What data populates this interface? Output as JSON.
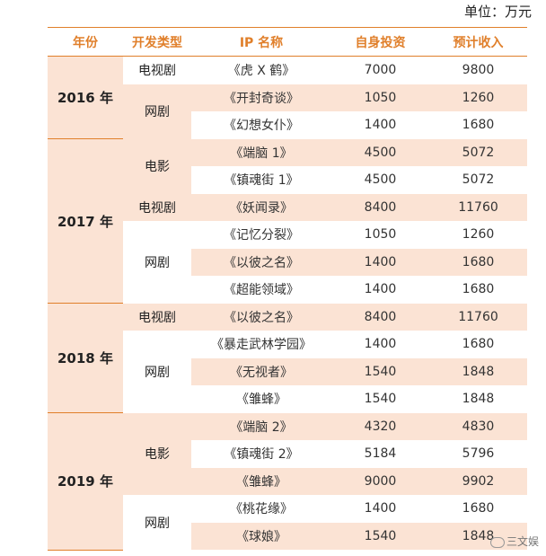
{
  "unit_label": "单位：万元",
  "headers": [
    "年份",
    "开发类型",
    "IP 名称",
    "自身投资",
    "预计收入"
  ],
  "years": [
    {
      "year": "2016 年",
      "groups": [
        {
          "type": "电视剧",
          "rows": [
            {
              "ip": "《虎 X 鹤》",
              "invest": "7000",
              "income": "9800"
            }
          ]
        },
        {
          "type": "网剧",
          "rows": [
            {
              "ip": "《开封奇谈》",
              "invest": "1050",
              "income": "1260"
            },
            {
              "ip": "《幻想女仆》",
              "invest": "1400",
              "income": "1680"
            }
          ]
        }
      ]
    },
    {
      "year": "2017 年",
      "groups": [
        {
          "type": "电影",
          "rows": [
            {
              "ip": "《端脑 1》",
              "invest": "4500",
              "income": "5072"
            },
            {
              "ip": "《镇魂街 1》",
              "invest": "4500",
              "income": "5072"
            }
          ]
        },
        {
          "type": "电视剧",
          "rows": [
            {
              "ip": "《妖闻录》",
              "invest": "8400",
              "income": "11760"
            }
          ]
        },
        {
          "type": "网剧",
          "rows": [
            {
              "ip": "《记忆分裂》",
              "invest": "1050",
              "income": "1260"
            },
            {
              "ip": "《以彼之名》",
              "invest": "1400",
              "income": "1680"
            },
            {
              "ip": "《超能领域》",
              "invest": "1400",
              "income": "1680"
            }
          ]
        }
      ]
    },
    {
      "year": "2018 年",
      "groups": [
        {
          "type": "电视剧",
          "rows": [
            {
              "ip": "《以彼之名》",
              "invest": "8400",
              "income": "11760"
            }
          ]
        },
        {
          "type": "网剧",
          "rows": [
            {
              "ip": "《暴走武林学园》",
              "invest": "1400",
              "income": "1680"
            },
            {
              "ip": "《无视者》",
              "invest": "1540",
              "income": "1848"
            },
            {
              "ip": "《雏蜂》",
              "invest": "1540",
              "income": "1848"
            }
          ]
        }
      ]
    },
    {
      "year": "2019 年",
      "groups": [
        {
          "type": "电影",
          "rows": [
            {
              "ip": "《端脑 2》",
              "invest": "4320",
              "income": "4830"
            },
            {
              "ip": "《镇魂街 2》",
              "invest": "5184",
              "income": "5796"
            },
            {
              "ip": "《雏蜂》",
              "invest": "9000",
              "income": "9902"
            }
          ]
        },
        {
          "type": "网剧",
          "rows": [
            {
              "ip": "《桃花缘》",
              "invest": "1400",
              "income": "1680"
            },
            {
              "ip": "《球娘》",
              "invest": "1540",
              "income": "1848"
            }
          ]
        }
      ]
    }
  ],
  "watermark": "三文娱"
}
